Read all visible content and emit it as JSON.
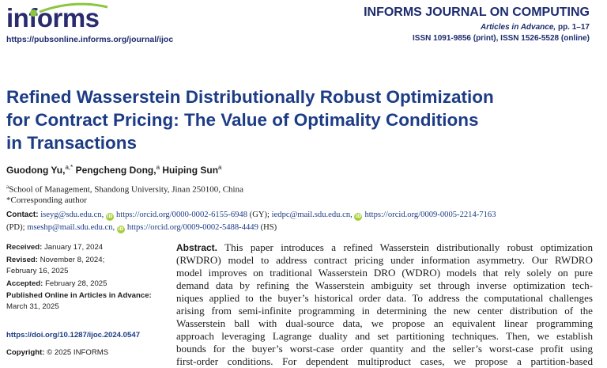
{
  "header": {
    "logo_text": "informs",
    "journal_url": "https://pubsonline.informs.org/journal/ijoc",
    "journal_name": "INFORMS JOURNAL ON COMPUTING",
    "issue_italic": "Articles in Advance,",
    "issue_pages": "pp. 1–17",
    "issn": "ISSN 1091-9856 (print), ISSN 1526-5528 (online)"
  },
  "title_lines": [
    "Refined Wasserstein Distributionally Robust Optimization",
    "for Contract Pricing: The Value of Optimality Conditions",
    "in Transactions"
  ],
  "authors": [
    {
      "name": "Guodong Yu,",
      "sup": "a,*"
    },
    {
      "name": "Pengcheng Dong,",
      "sup": "a"
    },
    {
      "name": "Huiping Sun",
      "sup": "a"
    }
  ],
  "affiliation": {
    "sup": "a",
    "text": "School of Management, Shandong University, Jinan 250100, China"
  },
  "corresponding": "*Corresponding author",
  "contact": {
    "label": "Contact:",
    "email1": "iseyg@sdu.edu.cn,",
    "orcid1": "https://orcid.org/0000-0002-6155-6948",
    "tag1": "(GY);",
    "email2": "iedpc@mail.sdu.edu.cn,",
    "orcid2": "https://orcid.org/0009-0005-2214-7163",
    "tag2": "(PD);",
    "email3": "mseshp@mail.sdu.edu.cn,",
    "orcid3": "https://orcid.org/0009-0002-5488-4449",
    "tag3": "(HS)",
    "orcid_icon": "iD"
  },
  "history": {
    "received_label": "Received:",
    "received": "January 17, 2024",
    "revised_label": "Revised:",
    "revised1": "November 8, 2024;",
    "revised2": "February 16, 2025",
    "accepted_label": "Accepted:",
    "accepted": "February 28, 2025",
    "published_label": "Published Online in Articles in Advance:",
    "published": "March 31, 2025"
  },
  "doi": "https://doi.org/10.1287/ijoc.2024.0547",
  "copyright_label": "Copyright:",
  "copyright": "© 2025 INFORMS",
  "abstract": {
    "heading": "Abstract.",
    "lines": [
      "This paper introduces a refined Wasserstein distributionally robust optimization",
      "(RWDRO) model to address contract pricing under information asymmetry. Our RWDRO",
      "model improves on traditional Wasserstein DRO (WDRO) models that rely solely on pure",
      "demand data by refining the Wasserstein ambiguity set through inverse optimization tech-",
      "niques applied to the buyer’s historical order data. To address the computational challenges",
      "arising from semi-infinite programming in determining the new center distribution of the",
      "Wasserstein ball with dual-source data, we propose an equivalent linear programming",
      "approach leveraging Lagrange duality and set partitioning techniques. Then, we establish",
      "bounds for the buyer’s worst-case order quantity and the seller’s worst-case profit using",
      "first-order conditions. For dependent multiproduct cases, we propose a partition-based"
    ]
  }
}
